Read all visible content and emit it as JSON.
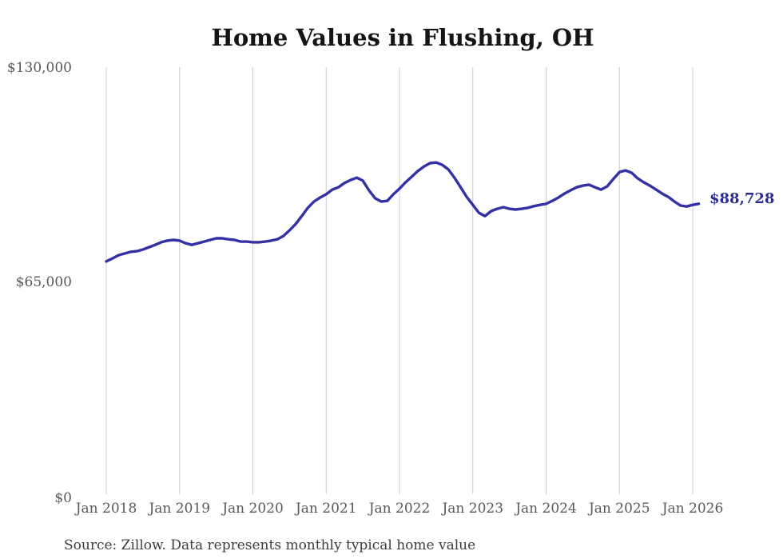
{
  "title": "Home Values in Flushing, OH",
  "source_note": "Source: Zillow. Data represents monthly typical home value",
  "end_label": "$88,728",
  "colors": {
    "line": "#3431a4",
    "end_label": "#2b2b8f",
    "gridline": "#cccccc",
    "axis_text": "#595959",
    "title_text": "#151515"
  },
  "chart_data": {
    "type": "line",
    "title": "Home Values in Flushing, OH",
    "xlabel": "",
    "ylabel": "",
    "ylim": [
      0,
      130000
    ],
    "grid": "vertical-only",
    "legend_position": "none",
    "x_tick_labels": [
      "Jan 2018",
      "Jan 2019",
      "Jan 2020",
      "Jan 2021",
      "Jan 2022",
      "Jan 2023",
      "Jan 2024",
      "Jan 2025",
      "Jan 2026"
    ],
    "y_tick_labels": [
      "$130,000",
      "$65,000",
      "$0"
    ],
    "y_tick_values": [
      130000,
      65000,
      0
    ],
    "annotation": {
      "text": "$88,728",
      "value": 88728
    },
    "series": [
      {
        "name": "Typical home value",
        "frequency": "monthly",
        "start": "Jan 2018",
        "end": "Feb 2026",
        "values": [
          71300,
          72200,
          73200,
          73700,
          74200,
          74400,
          74900,
          75600,
          76300,
          77100,
          77600,
          77800,
          77600,
          76800,
          76300,
          76800,
          77300,
          77800,
          78300,
          78300,
          78000,
          77800,
          77300,
          77300,
          77100,
          77100,
          77300,
          77600,
          78000,
          79000,
          80700,
          82600,
          85000,
          87500,
          89400,
          90600,
          91600,
          93000,
          93700,
          95000,
          95900,
          96600,
          95700,
          92800,
          90400,
          89400,
          89600,
          91600,
          93300,
          95200,
          96900,
          98600,
          100000,
          101000,
          101200,
          100500,
          99100,
          96600,
          93700,
          90800,
          88400,
          86000,
          85000,
          86500,
          87200,
          87700,
          87200,
          87000,
          87200,
          87500,
          88000,
          88400,
          88700,
          89600,
          90600,
          91800,
          92800,
          93700,
          94200,
          94500,
          93700,
          93000,
          94000,
          96200,
          98300,
          98800,
          98100,
          96400,
          95200,
          94200,
          93000,
          91800,
          90800,
          89400,
          88200,
          87900,
          88400,
          88728
        ]
      }
    ]
  }
}
